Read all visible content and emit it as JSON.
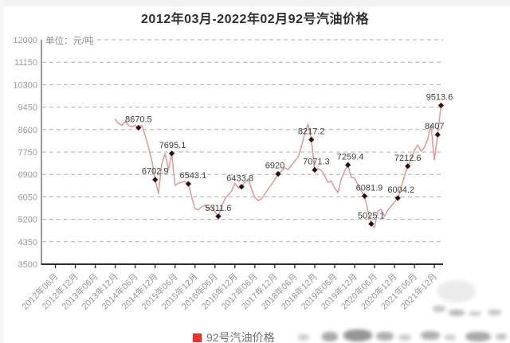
{
  "page": {
    "title": "2012年03月-2022年02月92号汽油价格"
  },
  "chart_data": {
    "type": "line",
    "title": "2012年03月-2022年02月92号汽油价格",
    "unit_label": "单位：元/吨",
    "series_name": "92号汽油价格",
    "legend_position": "bottom",
    "grid": true,
    "ylim": [
      3500,
      12000
    ],
    "y_ticks": [
      12000,
      11150,
      10300,
      9450,
      8600,
      7750,
      6900,
      6050,
      5200,
      4350,
      3500
    ],
    "x_tick_labels": [
      "2012年06月",
      "2012年12月",
      "2013年06月",
      "2013年12月",
      "2014年06月",
      "2014年12月",
      "2015年06月",
      "2015年12月",
      "2016年06月",
      "2016年12月",
      "2017年06月",
      "2017年12月",
      "2018年06月",
      "2018年12月",
      "2019年06月",
      "2019年12月",
      "2020年06月",
      "2020年12月",
      "2021年06月",
      "2021年12月"
    ],
    "x_tick_month_indices": [
      3,
      9,
      15,
      21,
      27,
      33,
      39,
      45,
      51,
      57,
      63,
      69,
      75,
      81,
      87,
      93,
      99,
      105,
      111,
      117
    ],
    "months_span_note": "month_index 0 = 2012年03月, 119 = 2022年02月",
    "series_start_month_index": 21,
    "values": [
      8990,
      8830,
      8760,
      8900,
      8760,
      8700,
      8760,
      8670.5,
      8770,
      8380,
      7930,
      7420,
      6702.9,
      6180,
      7300,
      7690,
      7090,
      7695.1,
      6480,
      6570,
      6600,
      6640,
      6543.1,
      6030,
      5610,
      5560,
      5680,
      5730,
      5600,
      5680,
      5480,
      5311.6,
      5690,
      5980,
      6120,
      6270,
      6570,
      6380,
      6433.8,
      6600,
      6730,
      6350,
      6030,
      5910,
      5970,
      6150,
      6350,
      6520,
      6700,
      6920,
      7030,
      7150,
      7080,
      7250,
      7400,
      7560,
      7950,
      8450,
      8805,
      8217.2,
      7071.3,
      7120,
      7050,
      6850,
      6600,
      6650,
      6400,
      6210,
      6725,
      7030,
      7259.4,
      6785,
      6760,
      6515,
      6280,
      6081.9,
      5520,
      5025.1,
      4890,
      5520,
      5580,
      5310,
      5550,
      5700,
      5850,
      6004.2,
      6420,
      6820,
      7212.6,
      7480,
      7820,
      8020,
      7780,
      7920,
      8230,
      8760,
      7450,
      8407,
      9513.6
    ],
    "labeled_points": [
      {
        "month_index": 28,
        "value": 8670.5,
        "label": "8670.5",
        "dx": 0
      },
      {
        "month_index": 33,
        "value": 6702.9,
        "label": "6702.9",
        "dx": 0
      },
      {
        "month_index": 38,
        "value": 7695.1,
        "label": "7695.1",
        "dx": 1
      },
      {
        "month_index": 43,
        "value": 6543.1,
        "label": "6543.1",
        "dx": 6
      },
      {
        "month_index": 52,
        "value": 5311.6,
        "label": "5311.6",
        "dx": 0
      },
      {
        "month_index": 59,
        "value": 6433.8,
        "label": "6433.8",
        "dx": -2
      },
      {
        "month_index": 70,
        "value": 6920,
        "label": "6920",
        "dx": -4
      },
      {
        "month_index": 80,
        "value": 8217.2,
        "label": "8217.2",
        "dx": 0
      },
      {
        "month_index": 81,
        "value": 7071.3,
        "label": "7071.3",
        "dx": 2
      },
      {
        "month_index": 91,
        "value": 7259.4,
        "label": "7259.4",
        "dx": 3
      },
      {
        "month_index": 96,
        "value": 6081.9,
        "label": "6081.9",
        "dx": 6
      },
      {
        "month_index": 98,
        "value": 5025.1,
        "label": "5025.1",
        "dx": 0
      },
      {
        "month_index": 106,
        "value": 6004.2,
        "label": "6004.2",
        "dx": 4
      },
      {
        "month_index": 109,
        "value": 7212.6,
        "label": "7212.6",
        "dx": 0
      },
      {
        "month_index": 118,
        "value": 8407,
        "label": "8407",
        "dx": -4
      },
      {
        "month_index": 119,
        "value": 9513.6,
        "label": "9513.6",
        "dx": -2
      }
    ],
    "colors": {
      "line": "#d99f9e",
      "marker": "#2d0d0d",
      "point_label": "#3d3d3d",
      "axis_label": "#9a9a9a",
      "grid": "#adadad",
      "axis": "#2b2b2b",
      "legend_swatch": "#e8312f",
      "title": "#2d2d2d"
    }
  }
}
